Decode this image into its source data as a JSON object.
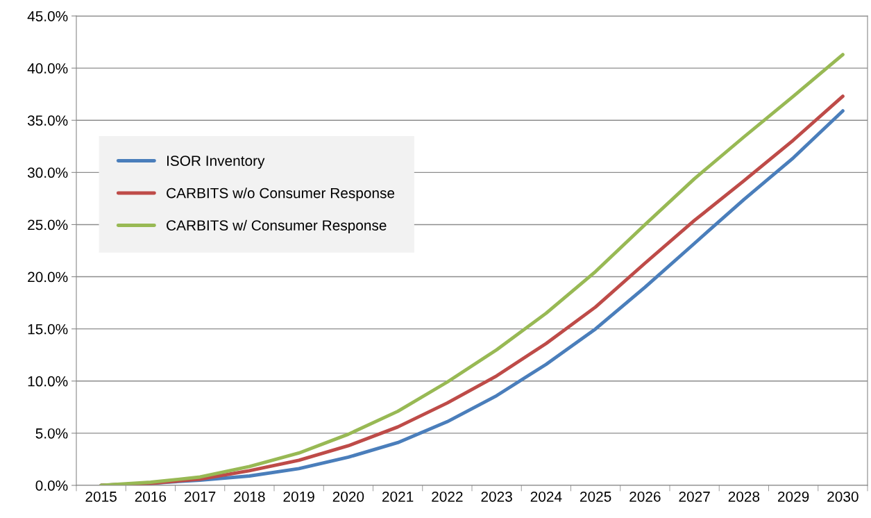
{
  "chart_data": {
    "type": "line",
    "categories": [
      "2015",
      "2016",
      "2017",
      "2018",
      "2019",
      "2020",
      "2021",
      "2022",
      "2023",
      "2024",
      "2025",
      "2026",
      "2027",
      "2028",
      "2029",
      "2030"
    ],
    "series": [
      {
        "name": "ISOR Inventory",
        "color": "#4a7ebb",
        "values": [
          0.0,
          0.2,
          0.5,
          0.9,
          1.6,
          2.7,
          4.1,
          6.1,
          8.6,
          11.6,
          15.0,
          19.0,
          23.2,
          27.4,
          31.4,
          35.9
        ]
      },
      {
        "name": "CARBITS w/o Consumer Response",
        "color": "#be4b48",
        "values": [
          0.0,
          0.2,
          0.6,
          1.4,
          2.4,
          3.8,
          5.6,
          7.9,
          10.5,
          13.6,
          17.1,
          21.3,
          25.4,
          29.2,
          33.1,
          37.3
        ]
      },
      {
        "name": "CARBITS w/ Consumer Response",
        "color": "#98b954",
        "values": [
          0.0,
          0.3,
          0.8,
          1.8,
          3.1,
          4.9,
          7.1,
          9.9,
          13.0,
          16.5,
          20.5,
          25.0,
          29.4,
          33.4,
          37.3,
          41.3
        ]
      }
    ],
    "ylim": [
      0,
      45
    ],
    "yticks": [
      {
        "value": 0,
        "label": "0.0%"
      },
      {
        "value": 5,
        "label": "5.0%"
      },
      {
        "value": 10,
        "label": "10.0%"
      },
      {
        "value": 15,
        "label": "15.0%"
      },
      {
        "value": 20,
        "label": "20.0%"
      },
      {
        "value": 25,
        "label": "25.0%"
      },
      {
        "value": 30,
        "label": "30.0%"
      },
      {
        "value": 35,
        "label": "35.0%"
      },
      {
        "value": 40,
        "label": "40.0%"
      },
      {
        "value": 45,
        "label": "45.0%"
      }
    ],
    "grid": "y",
    "legend": "left",
    "marker": "none",
    "line_style": "solid"
  }
}
